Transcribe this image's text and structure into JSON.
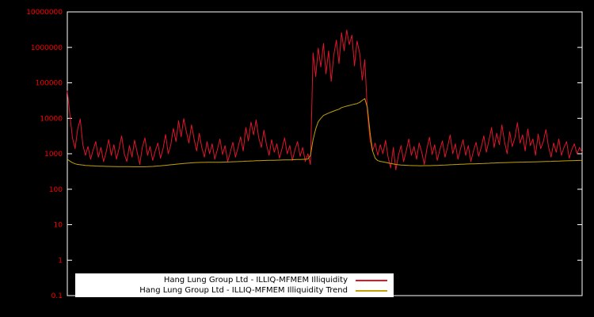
{
  "chart_data": {
    "type": "line",
    "title": "",
    "xlabel": "",
    "ylabel": "",
    "y_scale": "log",
    "ylim": [
      0.1,
      10000000
    ],
    "x_tick_labels_visible": false,
    "grid": false,
    "legend_position": "bottom-center-inside",
    "background_color": "#000000",
    "border_color": "#ffffff",
    "tick_label_color": "#ff0000",
    "legend_background": "#ffffff",
    "legend_text_color": "#000000",
    "yticks": [
      {
        "label": "10000000",
        "value": 10000000
      },
      {
        "label": "1000000",
        "value": 1000000
      },
      {
        "label": "100000",
        "value": 100000
      },
      {
        "label": "10000",
        "value": 10000
      },
      {
        "label": "1000",
        "value": 1000
      },
      {
        "label": "100",
        "value": 100
      },
      {
        "label": "10",
        "value": 10
      },
      {
        "label": "1",
        "value": 1
      },
      {
        "label": "0.1",
        "value": 0.1
      }
    ],
    "series": [
      {
        "name": "Hang Lung Group Ltd - ILLIQ-MFMEM Illiquidity",
        "color": "#e0162b",
        "values": [
          60000,
          12000,
          2800,
          1400,
          5000,
          9500,
          1800,
          900,
          1600,
          700,
          1300,
          2200,
          800,
          1500,
          600,
          1100,
          2500,
          900,
          1800,
          700,
          1400,
          3200,
          1000,
          600,
          1700,
          800,
          2400,
          1100,
          500,
          1500,
          2800,
          900,
          1600,
          650,
          1200,
          2000,
          750,
          1400,
          3500,
          1000,
          1800,
          5200,
          2200,
          8500,
          3000,
          9800,
          4200,
          2000,
          6500,
          2600,
          1200,
          3800,
          1500,
          800,
          2200,
          1000,
          1900,
          700,
          1300,
          2600,
          950,
          1700,
          600,
          1100,
          2100,
          800,
          1500,
          3000,
          1200,
          5500,
          2300,
          7800,
          3400,
          9000,
          2800,
          1500,
          4600,
          1800,
          900,
          2500,
          1100,
          1900,
          750,
          1400,
          2800,
          1000,
          1700,
          650,
          1300,
          2200,
          850,
          1500,
          600,
          1000,
          500,
          700000,
          150000,
          950000,
          280000,
          1300000,
          180000,
          800000,
          110000,
          600000,
          1600000,
          350000,
          2600000,
          800000,
          3100000,
          1200000,
          2200000,
          300000,
          1500000,
          700000,
          120000,
          450000,
          15000,
          2500,
          1200,
          2000,
          900,
          1800,
          1000,
          2400,
          800,
          400,
          1500,
          350,
          900,
          1700,
          600,
          1200,
          2600,
          900,
          1600,
          700,
          2000,
          1100,
          500,
          1400,
          2900,
          950,
          1800,
          650,
          1300,
          2300,
          800,
          1600,
          3400,
          1000,
          1900,
          700,
          1400,
          2500,
          900,
          1700,
          600,
          1200,
          2100,
          850,
          1500,
          3200,
          1100,
          2400,
          5500,
          1500,
          3800,
          1800,
          6500,
          2200,
          1000,
          4200,
          1600,
          2800,
          7500,
          2000,
          3400,
          1200,
          5000,
          1700,
          2600,
          900,
          3600,
          1400,
          2200,
          4800,
          1600,
          800,
          2000,
          1100,
          2600,
          900,
          1500,
          2200,
          750,
          1300,
          1900,
          1000,
          1500,
          1100
        ]
      },
      {
        "name": "Hang Lung Group Ltd - ILLIQ-MFMEM Illiquidity Trend",
        "color": "#c2a008",
        "values": [
          700,
          620,
          560,
          520,
          500,
          490,
          480,
          470,
          465,
          460,
          455,
          450,
          448,
          445,
          443,
          440,
          438,
          437,
          436,
          435,
          434,
          433,
          433,
          432,
          432,
          431,
          431,
          430,
          430,
          430,
          430,
          432,
          436,
          440,
          446,
          452,
          458,
          465,
          472,
          480,
          488,
          496,
          505,
          514,
          523,
          532,
          540,
          548,
          554,
          560,
          565,
          568,
          570,
          572,
          573,
          574,
          575,
          576,
          577,
          578,
          580,
          583,
          586,
          590,
          594,
          598,
          602,
          607,
          611,
          616,
          621,
          626,
          630,
          635,
          639,
          643,
          646,
          649,
          652,
          654,
          656,
          659,
          662,
          665,
          668,
          671,
          674,
          678,
          682,
          686,
          690,
          695,
          700,
          710,
          900,
          2500,
          5000,
          8000,
          10000,
          12000,
          13000,
          14000,
          15000,
          16000,
          17000,
          18000,
          20000,
          21000,
          22000,
          23000,
          24000,
          25000,
          26000,
          28000,
          32000,
          36000,
          20000,
          4000,
          1200,
          750,
          640,
          610,
          590,
          570,
          550,
          530,
          515,
          500,
          490,
          482,
          476,
          472,
          468,
          465,
          463,
          461,
          460,
          460,
          461,
          462,
          463,
          465,
          467,
          470,
          473,
          476,
          480,
          484,
          488,
          492,
          496,
          500,
          504,
          508,
          511,
          514,
          517,
          520,
          523,
          526,
          529,
          532,
          536,
          540,
          544,
          548,
          552,
          556,
          560,
          563,
          566,
          569,
          572,
          574,
          577,
          579,
          581,
          583,
          585,
          587,
          589,
          592,
          595,
          598,
          601,
          605,
          608,
          611,
          615,
          618,
          621,
          625,
          628,
          631,
          635,
          638,
          641,
          645,
          648,
          650
        ]
      }
    ]
  }
}
